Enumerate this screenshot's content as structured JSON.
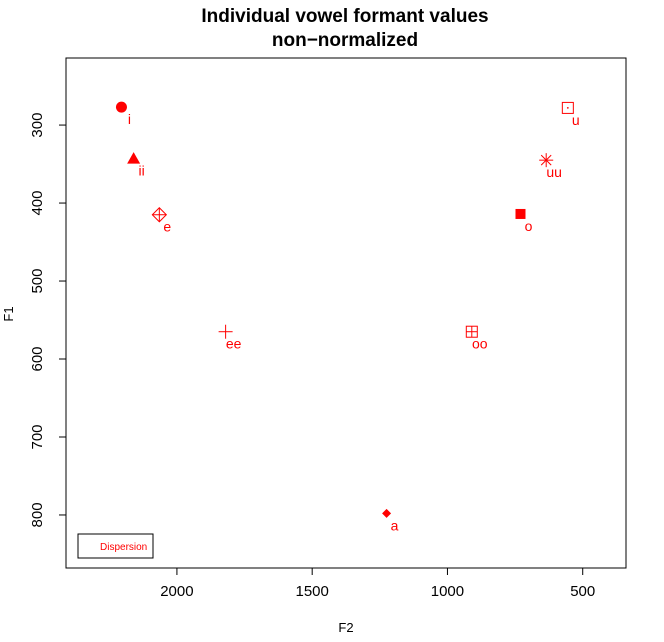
{
  "chart_data": {
    "type": "scatter",
    "title": "Individual vowel formant values",
    "subtitle": "non−normalized",
    "xlabel": "F2",
    "ylabel": "F1",
    "xlim": [
      2410,
      340
    ],
    "ylim": [
      868,
      214
    ],
    "x_reversed": true,
    "y_reversed": true,
    "x_ticks": [
      2000,
      1500,
      1000,
      500
    ],
    "y_ticks": [
      300,
      400,
      500,
      600,
      700,
      800
    ],
    "grid": false,
    "color": "#ff0000",
    "points": [
      {
        "label": "i",
        "x": 2205,
        "y": 277,
        "marker": "circle-filled"
      },
      {
        "label": "ii",
        "x": 2160,
        "y": 343,
        "marker": "triangle-filled"
      },
      {
        "label": "e",
        "x": 2065,
        "y": 415,
        "marker": "diamond-plus"
      },
      {
        "label": "ee",
        "x": 1820,
        "y": 565,
        "marker": "plus"
      },
      {
        "label": "a",
        "x": 1225,
        "y": 798,
        "marker": "diamond-filled"
      },
      {
        "label": "oo",
        "x": 910,
        "y": 565,
        "marker": "square-plus"
      },
      {
        "label": "o",
        "x": 730,
        "y": 414,
        "marker": "square-filled"
      },
      {
        "label": "uu",
        "x": 635,
        "y": 345,
        "marker": "asterisk"
      },
      {
        "label": "u",
        "x": 555,
        "y": 278,
        "marker": "square-dot"
      }
    ],
    "legend": {
      "placement": "bottom-left",
      "entries": [
        "Dispersion"
      ]
    }
  }
}
